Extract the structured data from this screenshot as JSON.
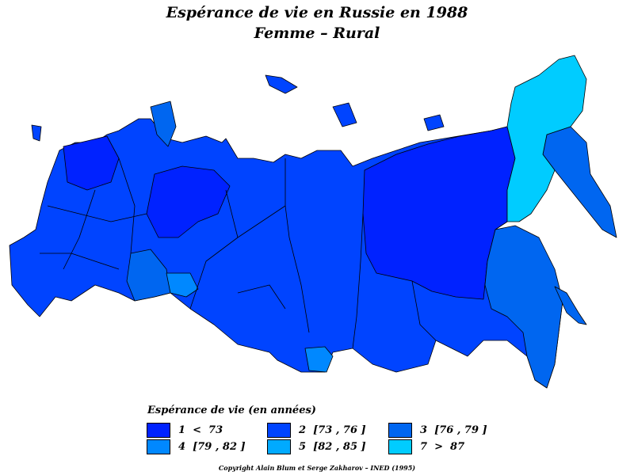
{
  "title": {
    "line1": "Espérance de vie en Russie en 1988",
    "line2": "Femme  –  Rural"
  },
  "legend": {
    "title": "Espérance de vie (en années)",
    "items": [
      {
        "label": "1  <  73",
        "color": "#0022ff"
      },
      {
        "label": "2  [73 , 76 ]",
        "color": "#0044ff"
      },
      {
        "label": "3  [76 , 79 ]",
        "color": "#0066f0"
      },
      {
        "label": "4  [79 , 82 ]",
        "color": "#0088ff"
      },
      {
        "label": "5  [82 , 85 ]",
        "color": "#00aaff"
      },
      {
        "label": "7  >  87",
        "color": "#00ccff"
      }
    ]
  },
  "copyright": "Copyright Alain Blum et Serge Zakharov  –  INED (1995)"
}
